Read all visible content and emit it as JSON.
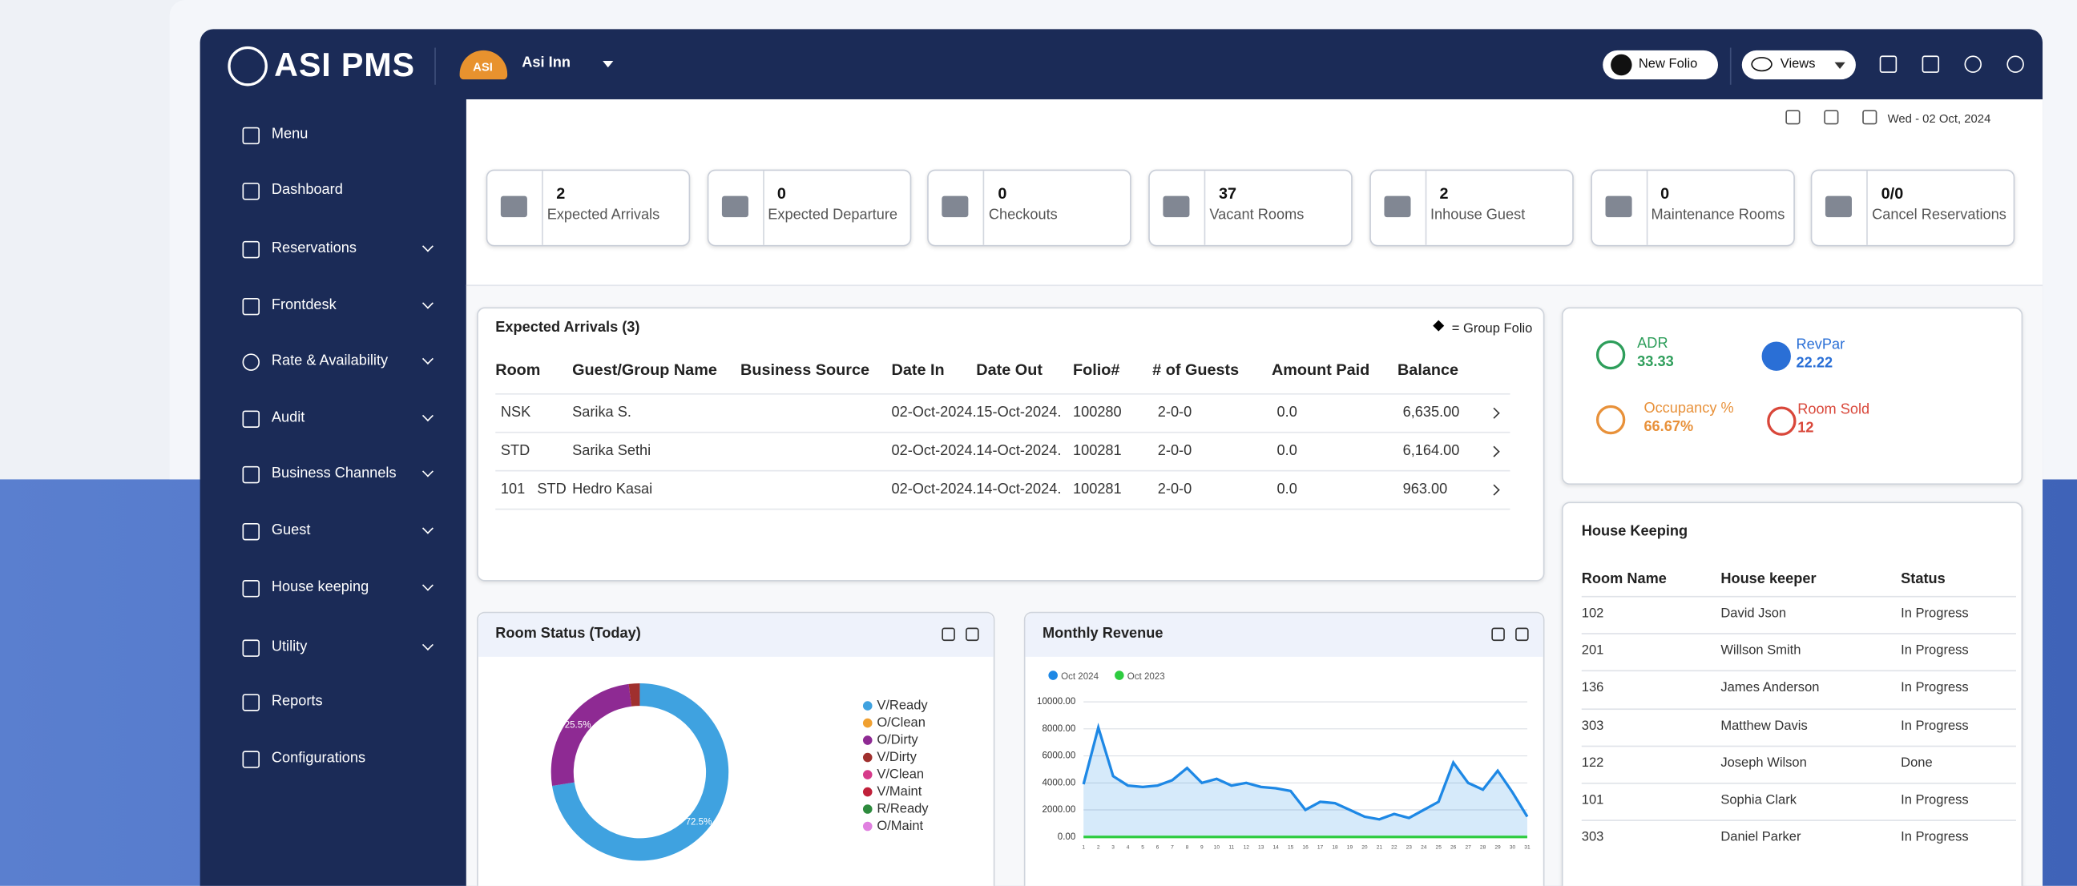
{
  "header": {
    "brand": "ASI PMS",
    "badge": "ASI",
    "hotel": "Asi Inn",
    "new_folio": "New Folio",
    "views": "Views"
  },
  "date": "Wed - 02 Oct, 2024",
  "sidebar": [
    "Menu",
    "Dashboard",
    "Reservations",
    "Frontdesk",
    "Rate & Availability",
    "Audit",
    "Business Channels",
    "Guest",
    "House keeping",
    "Utility",
    "Reports",
    "Configurations"
  ],
  "stats": [
    {
      "value": 2,
      "label": "Expected Arrivals"
    },
    {
      "value": 0,
      "label": "Expected Departure"
    },
    {
      "value": 0,
      "label": "Checkouts"
    },
    {
      "value": 37,
      "label": "Vacant Rooms"
    },
    {
      "value": 2,
      "label": "Inhouse Guest"
    },
    {
      "value": 0,
      "label": "Maintenance Rooms"
    },
    {
      "value": "0/0",
      "label": "Cancel Reservations"
    }
  ],
  "arrivals": {
    "title": "Expected Arrivals (3)",
    "legend": "= Group Folio",
    "columns": [
      "Room",
      "Guest/Group Name",
      "Business Source",
      "Date In",
      "Date Out",
      "Folio#",
      "# of Guests",
      "Amount Paid",
      "Balance"
    ],
    "rows": [
      {
        "room": "NSK",
        "guest": "Sarika S.",
        "date_in": "02-Oct-2024.",
        "date_out": "15-Oct-2024.",
        "folio": "100280",
        "guests": "2-0-0",
        "paid": "0.0",
        "balance": "6,635.00"
      },
      {
        "room": "STD",
        "guest": "Sarika Sethi",
        "date_in": "02-Oct-2024.",
        "date_out": "14-Oct-2024.",
        "folio": "100281",
        "guests": "2-0-0",
        "paid": "0.0",
        "balance": "6,164.00"
      },
      {
        "room": "101   STD",
        "guest": "Hedro Kasai",
        "date_in": "02-Oct-2024.",
        "date_out": "14-Oct-2024.",
        "folio": "100281",
        "guests": "2-0-0",
        "paid": "0.0",
        "balance": "963.00"
      }
    ]
  },
  "kpis": [
    {
      "label": "ADR",
      "value": "33.33",
      "color": "#2e9e5b"
    },
    {
      "label": "RevPar",
      "value": "22.22",
      "color": "#2a6fd6"
    },
    {
      "label": "Occupancy %",
      "value": "66.67%",
      "color": "#e8913a"
    },
    {
      "label": "Room Sold",
      "value": "12",
      "color": "#d9473a"
    }
  ],
  "housekeeping": {
    "title": "House Keeping",
    "columns": [
      "Room Name",
      "House keeper",
      "Status"
    ],
    "rows": [
      [
        "102",
        "David Json",
        "In Progress"
      ],
      [
        "201",
        "Willson Smith",
        "In Progress"
      ],
      [
        "136",
        "James Anderson",
        "In Progress"
      ],
      [
        "303",
        "Matthew Davis",
        "In Progress"
      ],
      [
        "122",
        "Joseph Wilson",
        "Done"
      ],
      [
        "101",
        "Sophia Clark",
        "In Progress"
      ],
      [
        "303",
        "Daniel Parker",
        "In Progress"
      ]
    ]
  },
  "chart_data": [
    {
      "type": "pie",
      "title": "Room Status (Today)",
      "categories": [
        "V/Ready",
        "O/Clean",
        "O/Dirty",
        "V/Dirty",
        "V/Clean",
        "V/Maint",
        "R/Ready",
        "O/Maint"
      ],
      "values": [
        72.5,
        0,
        25.5,
        2,
        0,
        0,
        0,
        0
      ],
      "value_labels": [
        "72.5%",
        null,
        "25.5%",
        null,
        null,
        null,
        null,
        null
      ],
      "colors": [
        "#3fa2e0",
        "#f0a030",
        "#8e2a93",
        "#a0302e",
        "#d63a8a",
        "#c0203a",
        "#2e8b3e",
        "#e080e0"
      ]
    },
    {
      "type": "line",
      "title": "Monthly Revenue",
      "x": [
        1,
        2,
        3,
        4,
        5,
        6,
        7,
        8,
        9,
        10,
        11,
        12,
        13,
        14,
        15,
        16,
        17,
        18,
        19,
        20,
        21,
        22,
        23,
        24,
        25,
        26,
        27,
        28,
        29,
        30,
        31
      ],
      "xlim": [
        1,
        31
      ],
      "ylim": [
        0,
        10000
      ],
      "yticks": [
        {
          "value": 0,
          "label": "0.00"
        },
        {
          "value": 2000,
          "label": "2000.00"
        },
        {
          "value": 4000,
          "label": "4000.00"
        },
        {
          "value": 6000,
          "label": "6000.00"
        },
        {
          "value": 8000,
          "label": "8000.00"
        },
        {
          "value": 10000,
          "label": "10000.00"
        }
      ],
      "grid": true,
      "series": [
        {
          "name": "Oct 2024",
          "color": "#1e88e5",
          "values": [
            3900,
            8100,
            4500,
            3800,
            3700,
            3800,
            4200,
            5100,
            4000,
            4300,
            3800,
            4000,
            3700,
            3600,
            3400,
            2000,
            2600,
            2500,
            2000,
            1500,
            1300,
            1700,
            1400,
            2000,
            2600,
            5500,
            4000,
            3500,
            4900,
            3300,
            1500
          ]
        },
        {
          "name": "Oct 2023",
          "color": "#2ecc40",
          "values": [
            0,
            0,
            0,
            0,
            0,
            0,
            0,
            0,
            0,
            0,
            0,
            0,
            0,
            0,
            0,
            0,
            0,
            0,
            0,
            0,
            0,
            0,
            0,
            0,
            0,
            0,
            0,
            0,
            0,
            0,
            0
          ]
        }
      ]
    }
  ]
}
